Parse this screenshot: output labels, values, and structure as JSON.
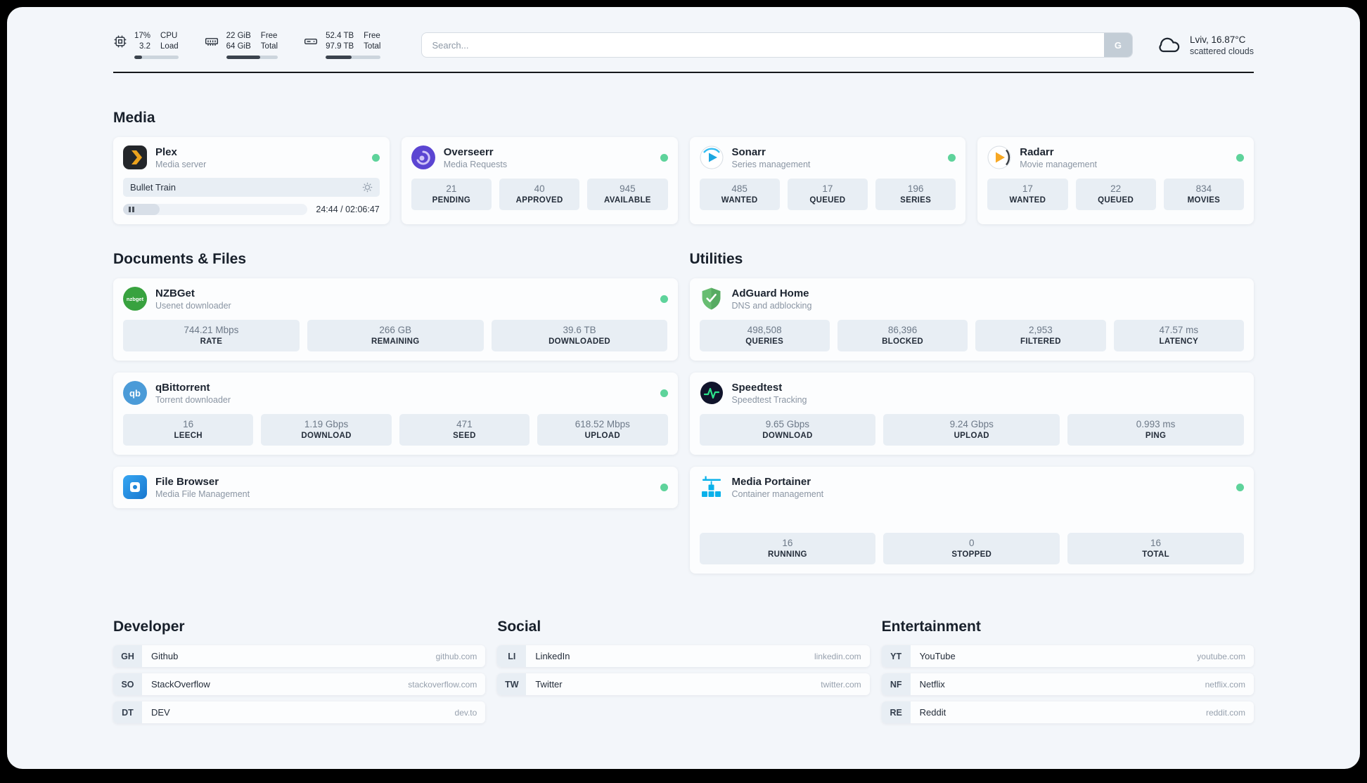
{
  "topbar": {
    "cpu": {
      "value1": "17%",
      "value2": "3.2",
      "label1": "CPU",
      "label2": "Load",
      "progress": 17
    },
    "ram": {
      "value1": "22 GiB",
      "value2": "64 GiB",
      "label1": "Free",
      "label2": "Total",
      "progress": 66
    },
    "disk": {
      "value1": "52.4 TB",
      "value2": "97.9 TB",
      "label1": "Free",
      "label2": "Total",
      "progress": 47
    },
    "search": {
      "placeholder": "Search...",
      "button_label": "G"
    },
    "weather": {
      "location": "Lviv, 16.87°C",
      "condition": "scattered clouds"
    }
  },
  "sections": {
    "media": {
      "title": "Media"
    },
    "documents": {
      "title": "Documents & Files"
    },
    "utilities": {
      "title": "Utilities"
    },
    "developer": {
      "title": "Developer"
    },
    "social": {
      "title": "Social"
    },
    "entertainment": {
      "title": "Entertainment"
    }
  },
  "services": {
    "plex": {
      "name": "Plex",
      "subtitle": "Media server",
      "now_playing": "Bullet Train",
      "time": "24:44 / 02:06:47",
      "progress": 20
    },
    "overseerr": {
      "name": "Overseerr",
      "subtitle": "Media Requests",
      "stats": [
        {
          "value": "21",
          "label": "PENDING"
        },
        {
          "value": "40",
          "label": "APPROVED"
        },
        {
          "value": "945",
          "label": "AVAILABLE"
        }
      ]
    },
    "sonarr": {
      "name": "Sonarr",
      "subtitle": "Series management",
      "stats": [
        {
          "value": "485",
          "label": "WANTED"
        },
        {
          "value": "17",
          "label": "QUEUED"
        },
        {
          "value": "196",
          "label": "SERIES"
        }
      ]
    },
    "radarr": {
      "name": "Radarr",
      "subtitle": "Movie management",
      "stats": [
        {
          "value": "17",
          "label": "WANTED"
        },
        {
          "value": "22",
          "label": "QUEUED"
        },
        {
          "value": "834",
          "label": "MOVIES"
        }
      ]
    },
    "nzbget": {
      "name": "NZBGet",
      "subtitle": "Usenet downloader",
      "stats": [
        {
          "value": "744.21 Mbps",
          "label": "RATE"
        },
        {
          "value": "266 GB",
          "label": "REMAINING"
        },
        {
          "value": "39.6 TB",
          "label": "DOWNLOADED"
        }
      ]
    },
    "qbittorrent": {
      "name": "qBittorrent",
      "subtitle": "Torrent downloader",
      "stats": [
        {
          "value": "16",
          "label": "LEECH"
        },
        {
          "value": "1.19 Gbps",
          "label": "DOWNLOAD"
        },
        {
          "value": "471",
          "label": "SEED"
        },
        {
          "value": "618.52 Mbps",
          "label": "UPLOAD"
        }
      ]
    },
    "filebrowser": {
      "name": "File Browser",
      "subtitle": "Media File Management"
    },
    "adguard": {
      "name": "AdGuard Home",
      "subtitle": "DNS and adblocking",
      "stats": [
        {
          "value": "498,508",
          "label": "QUERIES"
        },
        {
          "value": "86,396",
          "label": "BLOCKED"
        },
        {
          "value": "2,953",
          "label": "FILTERED"
        },
        {
          "value": "47.57 ms",
          "label": "LATENCY"
        }
      ]
    },
    "speedtest": {
      "name": "Speedtest",
      "subtitle": "Speedtest Tracking",
      "stats": [
        {
          "value": "9.65 Gbps",
          "label": "DOWNLOAD"
        },
        {
          "value": "9.24 Gbps",
          "label": "UPLOAD"
        },
        {
          "value": "0.993 ms",
          "label": "PING"
        }
      ]
    },
    "portainer": {
      "name": "Media Portainer",
      "subtitle": "Container management",
      "stats": [
        {
          "value": "16",
          "label": "RUNNING"
        },
        {
          "value": "0",
          "label": "STOPPED"
        },
        {
          "value": "16",
          "label": "TOTAL"
        }
      ]
    }
  },
  "bookmarks": {
    "developer": [
      {
        "abbr": "GH",
        "name": "Github",
        "url": "github.com"
      },
      {
        "abbr": "SO",
        "name": "StackOverflow",
        "url": "stackoverflow.com"
      },
      {
        "abbr": "DT",
        "name": "DEV",
        "url": "dev.to"
      }
    ],
    "social": [
      {
        "abbr": "LI",
        "name": "LinkedIn",
        "url": "linkedin.com"
      },
      {
        "abbr": "TW",
        "name": "Twitter",
        "url": "twitter.com"
      }
    ],
    "entertainment": [
      {
        "abbr": "YT",
        "name": "YouTube",
        "url": "youtube.com"
      },
      {
        "abbr": "NF",
        "name": "Netflix",
        "url": "netflix.com"
      },
      {
        "abbr": "RE",
        "name": "Reddit",
        "url": "reddit.com"
      }
    ]
  },
  "icons": {
    "nzbget_text": "nzbget",
    "qb_text": "qb"
  },
  "colors": {
    "status_online": "#5ed39b",
    "page_bg": "#f3f6fa",
    "stat_bg": "#e8eef4"
  }
}
